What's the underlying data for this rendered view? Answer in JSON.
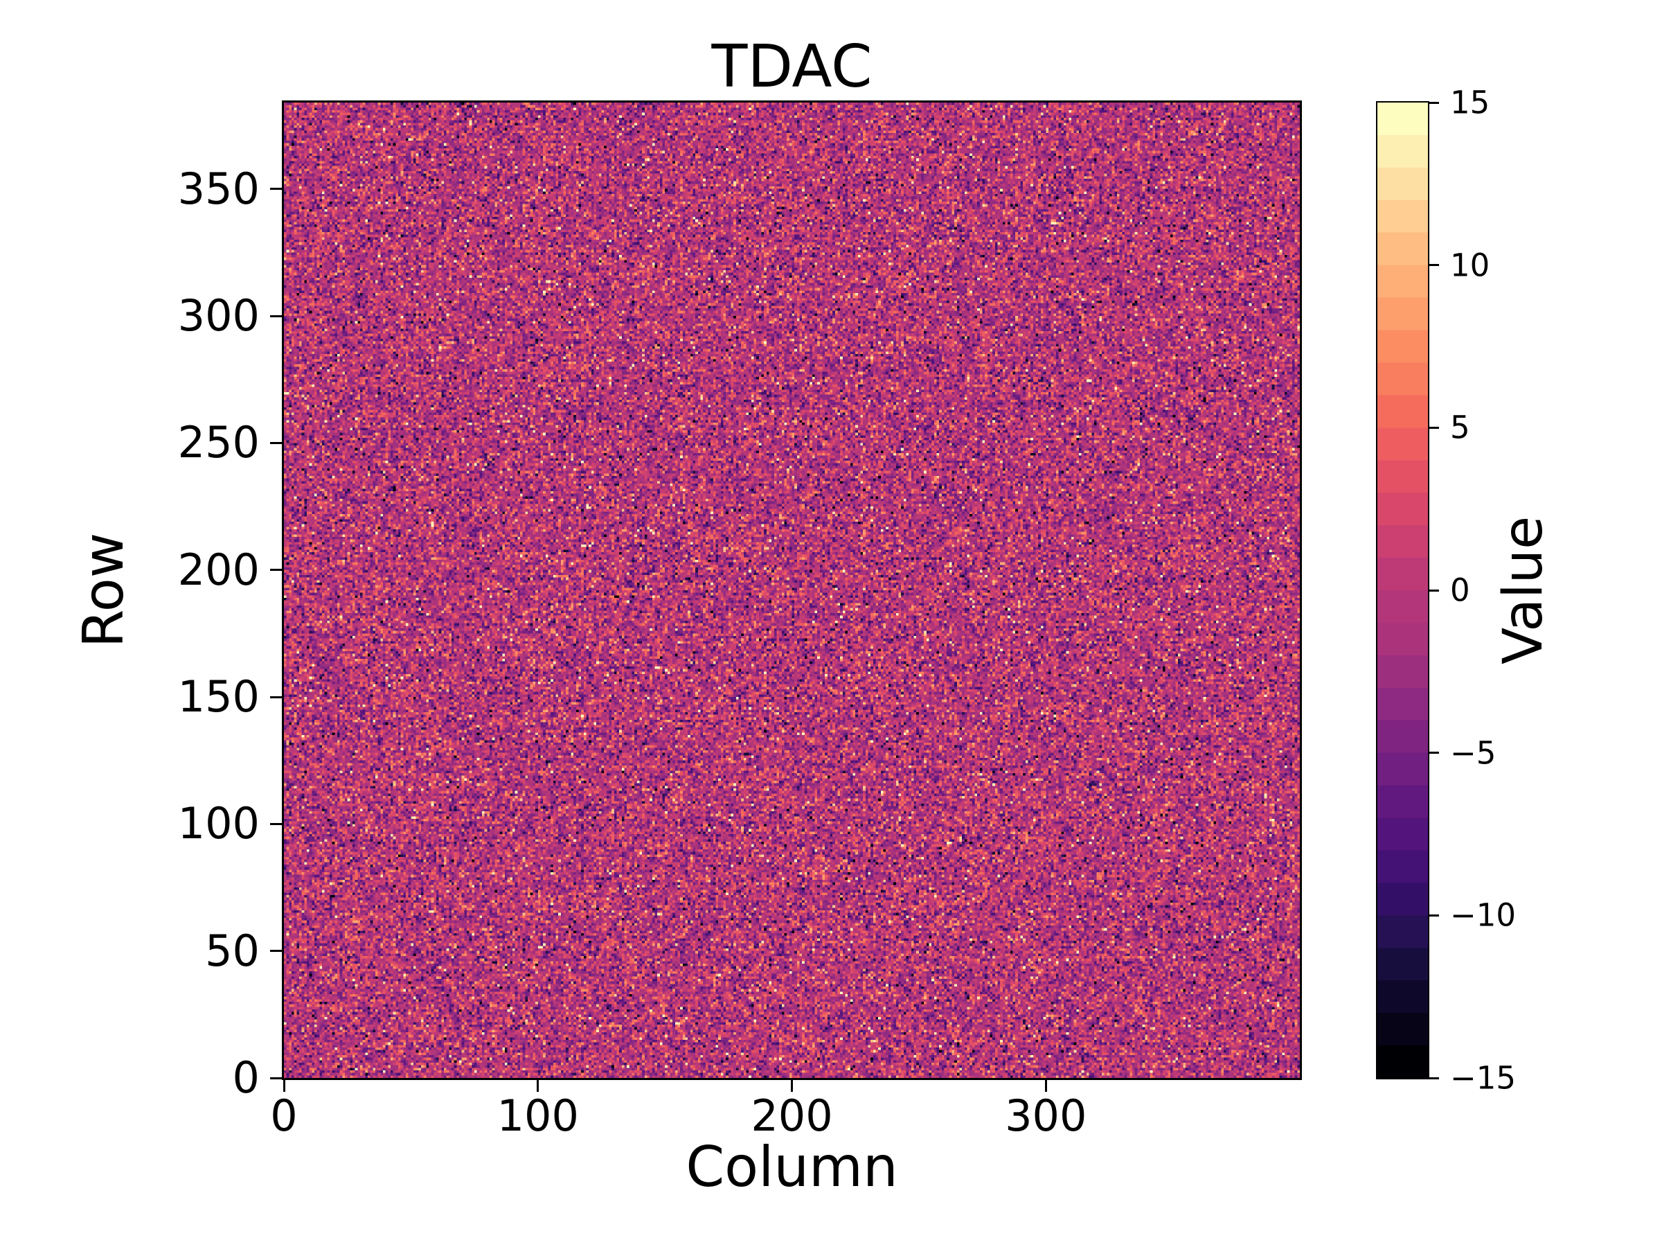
{
  "figure": {
    "background": "#ffffff",
    "text_color": "#000000"
  },
  "chart_data": {
    "type": "heatmap",
    "title": "TDAC",
    "xlabel": "Column",
    "ylabel": "Row",
    "colorbar_label": "Value",
    "n_cols": 400,
    "n_rows": 384,
    "xlim": [
      0,
      400
    ],
    "ylim": [
      0,
      384
    ],
    "vmin": -15,
    "vmax": 15,
    "x_ticks": [
      {
        "value": 0,
        "label": "0"
      },
      {
        "value": 100,
        "label": "100"
      },
      {
        "value": 200,
        "label": "200"
      },
      {
        "value": 300,
        "label": "300"
      }
    ],
    "y_ticks": [
      {
        "value": 0,
        "label": "0"
      },
      {
        "value": 50,
        "label": "50"
      },
      {
        "value": 100,
        "label": "100"
      },
      {
        "value": 150,
        "label": "150"
      },
      {
        "value": 200,
        "label": "200"
      },
      {
        "value": 250,
        "label": "250"
      },
      {
        "value": 300,
        "label": "300"
      },
      {
        "value": 350,
        "label": "350"
      }
    ],
    "colorbar_ticks": [
      {
        "value": 15,
        "label": "15"
      },
      {
        "value": 10,
        "label": "10"
      },
      {
        "value": 5,
        "label": "5"
      },
      {
        "value": 0,
        "label": "0"
      },
      {
        "value": -5,
        "label": "−5"
      },
      {
        "value": -10,
        "label": "−10"
      },
      {
        "value": -15,
        "label": "−15"
      }
    ],
    "colormap": "magma",
    "n_levels": 30,
    "colormap_stops": [
      "#000004",
      "#0c0826",
      "#1f114b",
      "#3b0f70",
      "#57157e",
      "#721f81",
      "#8c2981",
      "#a8327d",
      "#b73779",
      "#d0416f",
      "#e75263",
      "#f56b5c",
      "#fc8961",
      "#fea772",
      "#fec488",
      "#fee2a6",
      "#fcfdbf"
    ],
    "grid": false,
    "values_model": {
      "distribution": "gaussian-integer",
      "mean": -1,
      "std": 4,
      "outlier_fraction": 0.04,
      "range": [
        -15,
        15
      ],
      "seed": 20240517
    }
  }
}
